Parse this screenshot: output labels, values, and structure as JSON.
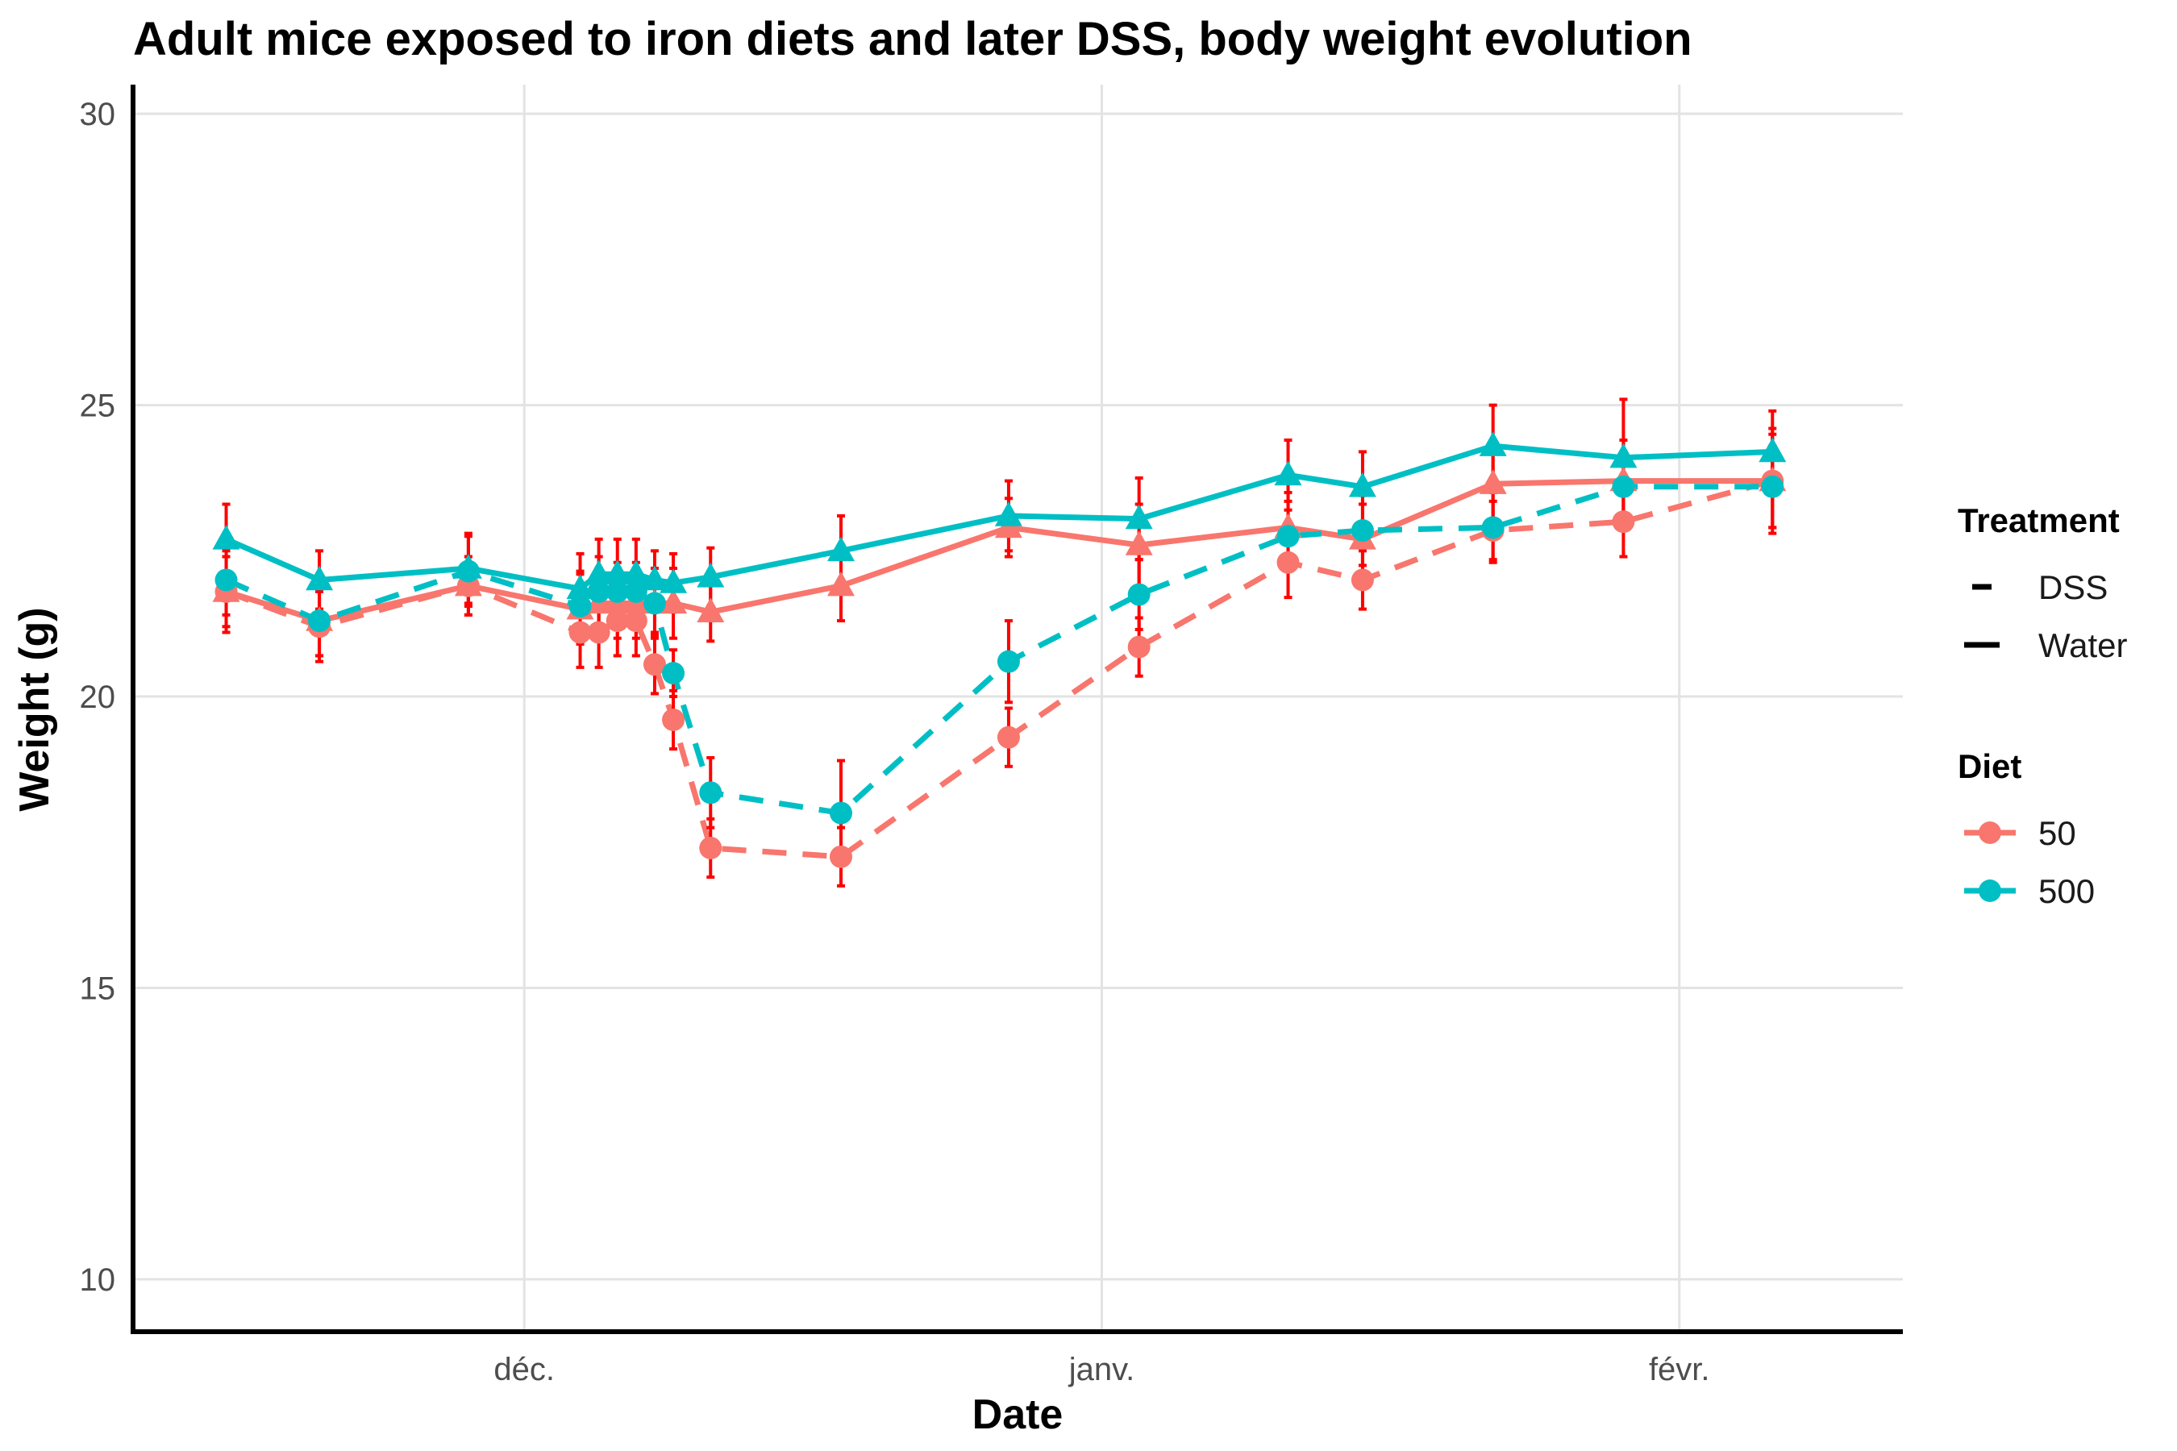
{
  "chart_data": {
    "type": "line",
    "title": "Adult mice exposed to iron diets and later DSS, body weight evolution",
    "xlabel": "Date",
    "ylabel": "Weight (g)",
    "x_type": "date",
    "xlim": [
      "2020-11-10",
      "2021-02-13"
    ],
    "ylim": [
      9.1,
      30.5
    ],
    "y_ticks": [
      10,
      15,
      20,
      25,
      30
    ],
    "x_ticks": [
      {
        "date": "2020-12-01",
        "label": "déc."
      },
      {
        "date": "2021-01-01",
        "label": "janv."
      },
      {
        "date": "2021-02-01",
        "label": "févr."
      }
    ],
    "grid": true,
    "legend_position": "right",
    "error_bar_color": "#ff0000",
    "x": [
      "2020-11-15",
      "2020-11-20",
      "2020-11-28",
      "2020-12-04",
      "2020-12-05",
      "2020-12-06",
      "2020-12-07",
      "2020-12-08",
      "2020-12-09",
      "2020-12-11",
      "2020-12-18",
      "2020-12-27",
      "2021-01-03",
      "2021-01-11",
      "2021-01-15",
      "2021-01-22",
      "2021-01-29",
      "2021-02-06"
    ],
    "series": [
      {
        "diet": "50",
        "treatment": "Water",
        "color": "#f8766d",
        "dash": "solid",
        "marker": "triangle",
        "values": [
          21.8,
          21.3,
          21.9,
          21.5,
          21.6,
          21.6,
          21.6,
          21.6,
          21.6,
          21.45,
          21.9,
          22.9,
          22.6,
          22.9,
          22.7,
          23.65,
          23.7,
          23.7
        ],
        "errors": [
          0.6,
          0.6,
          0.5,
          0.6,
          0.6,
          0.6,
          0.6,
          0.6,
          0.6,
          0.5,
          0.6,
          0.5,
          0.7,
          0.6,
          0.6,
          0.7,
          0.7,
          0.8
        ]
      },
      {
        "diet": "500",
        "treatment": "Water",
        "color": "#00bfc4",
        "dash": "solid",
        "marker": "triangle",
        "values": [
          22.7,
          22.0,
          22.2,
          21.85,
          22.1,
          22.1,
          22.1,
          22.0,
          21.95,
          22.05,
          22.5,
          23.1,
          23.05,
          23.8,
          23.6,
          24.3,
          24.1,
          24.2
        ],
        "errors": [
          0.6,
          0.5,
          0.6,
          0.6,
          0.6,
          0.6,
          0.6,
          0.5,
          0.5,
          0.5,
          0.6,
          0.6,
          0.7,
          0.6,
          0.6,
          0.7,
          1.0,
          0.7
        ]
      },
      {
        "diet": "50",
        "treatment": "DSS",
        "color": "#f8766d",
        "dash": "dashed",
        "marker": "circle",
        "values": [
          21.8,
          21.2,
          21.9,
          21.1,
          21.1,
          21.3,
          21.3,
          20.55,
          19.6,
          17.4,
          17.25,
          19.3,
          20.85,
          22.3,
          22.0,
          22.85,
          23.0,
          23.7
        ],
        "errors": [
          0.7,
          0.6,
          0.5,
          0.6,
          0.6,
          0.6,
          0.6,
          0.5,
          0.5,
          0.5,
          0.5,
          0.5,
          0.5,
          0.6,
          0.5,
          0.5,
          0.6,
          0.9
        ]
      },
      {
        "diet": "500",
        "treatment": "DSS",
        "color": "#00bfc4",
        "dash": "dashed",
        "marker": "circle",
        "values": [
          22.0,
          21.3,
          22.15,
          21.55,
          21.8,
          21.8,
          21.8,
          21.6,
          20.4,
          18.35,
          18.0,
          20.6,
          21.75,
          22.75,
          22.85,
          22.9,
          23.6,
          23.6
        ],
        "errors": [
          0.6,
          0.6,
          0.6,
          0.6,
          0.6,
          0.5,
          0.5,
          0.5,
          0.4,
          0.6,
          0.9,
          0.7,
          0.6,
          0.6,
          0.6,
          0.6,
          0.6,
          0.7
        ]
      }
    ],
    "legends": [
      {
        "title": "Treatment",
        "items": [
          {
            "label": "DSS",
            "dash": "dashed"
          },
          {
            "label": "Water",
            "dash": "solid"
          }
        ]
      },
      {
        "title": "Diet",
        "items": [
          {
            "label": "50",
            "color": "#f8766d"
          },
          {
            "label": "500",
            "color": "#00bfc4"
          }
        ]
      }
    ]
  }
}
